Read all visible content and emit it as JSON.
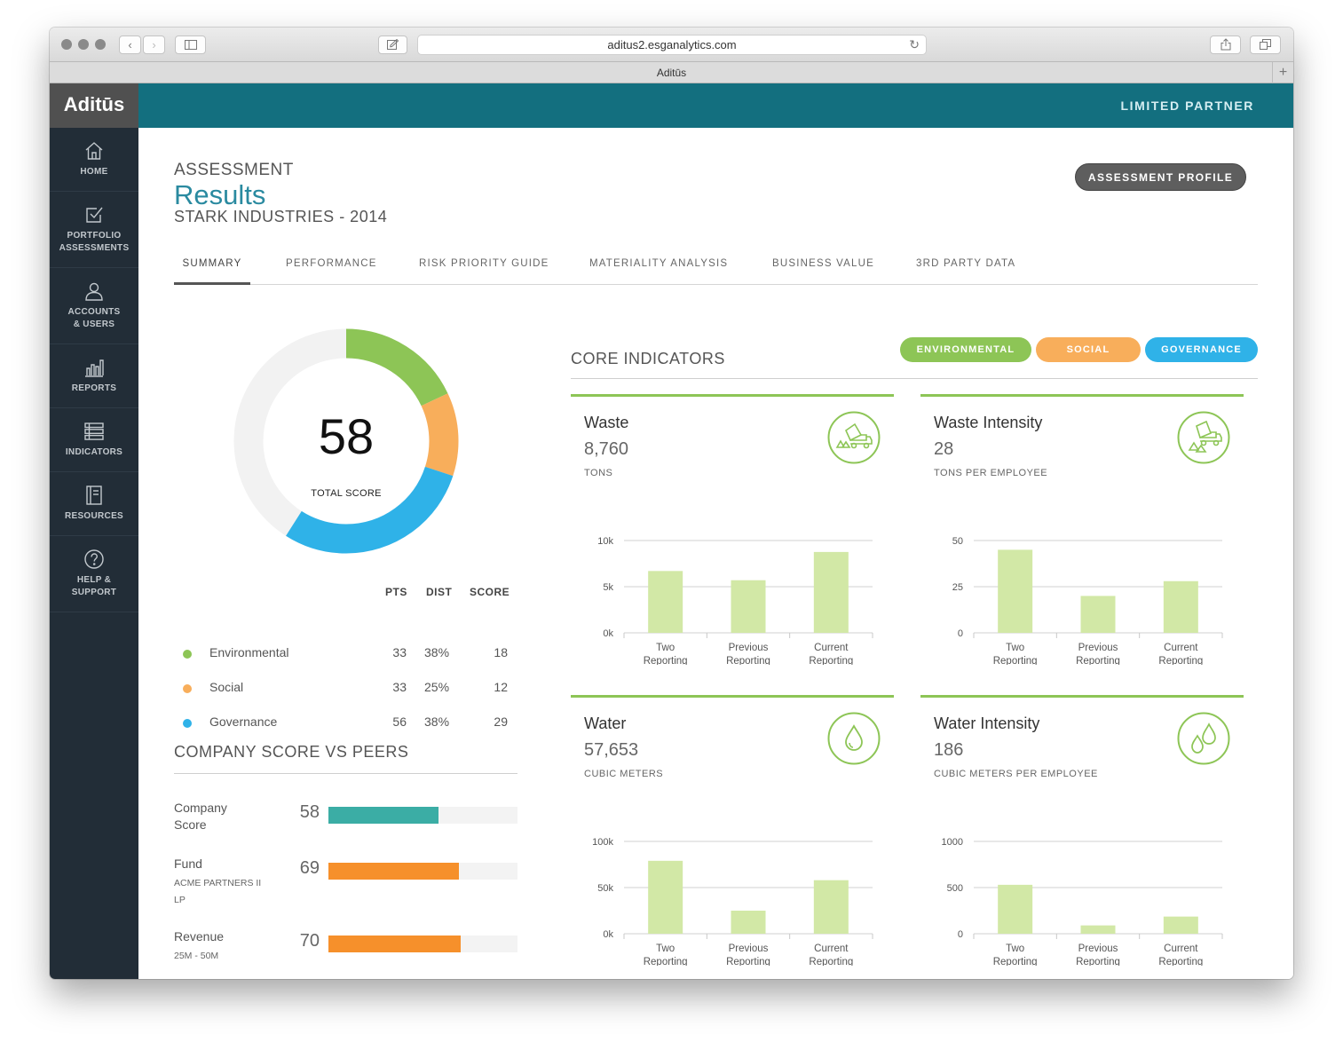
{
  "browser": {
    "url": "aditus2.esganalytics.com",
    "tab_title": "Aditūs"
  },
  "app": {
    "logo": "Aditūs",
    "role": "LIMITED PARTNER"
  },
  "sidebar": {
    "items": [
      {
        "label": "HOME",
        "icon": "home-icon"
      },
      {
        "label": "PORTFOLIO\nASSESSMENTS",
        "icon": "checkbox-icon"
      },
      {
        "label": "ACCOUNTS\n& USERS",
        "icon": "user-icon"
      },
      {
        "label": "REPORTS",
        "icon": "bar-chart-icon"
      },
      {
        "label": "INDICATORS",
        "icon": "list-icon"
      },
      {
        "label": "RESOURCES",
        "icon": "book-icon"
      },
      {
        "label": "HELP &\nSUPPORT",
        "icon": "help-icon"
      }
    ]
  },
  "header": {
    "pretitle": "ASSESSMENT",
    "title": "Results",
    "subtitle": "STARK INDUSTRIES - 2014",
    "profile_button": "ASSESSMENT PROFILE"
  },
  "tabs": [
    {
      "label": "SUMMARY",
      "active": true
    },
    {
      "label": "PERFORMANCE",
      "active": false
    },
    {
      "label": "RISK PRIORITY GUIDE",
      "active": false
    },
    {
      "label": "MATERIALITY ANALYSIS",
      "active": false
    },
    {
      "label": "BUSINESS VALUE",
      "active": false
    },
    {
      "label": "3RD PARTY DATA",
      "active": false
    }
  ],
  "summary": {
    "total_score": "58",
    "total_label": "TOTAL SCORE",
    "columns": {
      "pts": "PTS",
      "dist": "DIST",
      "score": "SCORE"
    },
    "rows": [
      {
        "name": "Environmental",
        "pts": "33",
        "dist": "38%",
        "score": "18",
        "color": "#8dc556"
      },
      {
        "name": "Social",
        "pts": "33",
        "dist": "25%",
        "score": "12",
        "color": "#f8ae5b"
      },
      {
        "name": "Governance",
        "pts": "56",
        "dist": "38%",
        "score": "29",
        "color": "#2fb2e8"
      }
    ],
    "remainder_color": "#f2f2f2"
  },
  "peers": {
    "heading": "COMPANY SCORE VS PEERS",
    "items": [
      {
        "name": "Company\nScore",
        "sub": "",
        "value": "58",
        "fraction": 0.58,
        "color": "#3bada5"
      },
      {
        "name": "Fund",
        "sub": "ACME PARTNERS II\nLP",
        "value": "69",
        "fraction": 0.69,
        "color": "#f6902b"
      },
      {
        "name": "Revenue",
        "sub": "25M - 50M",
        "value": "70",
        "fraction": 0.7,
        "color": "#f6902b"
      }
    ]
  },
  "core": {
    "heading": "CORE INDICATORS",
    "filters": [
      {
        "label": "ENVIRONMENTAL",
        "color": "#8dc556"
      },
      {
        "label": "SOCIAL",
        "color": "#f8ae5b"
      },
      {
        "label": "GOVERNANCE",
        "color": "#2fb2e8"
      }
    ],
    "bar_color": "#d2e8a6",
    "cards": [
      {
        "title": "Waste",
        "value": "8,760",
        "unit": "TONS",
        "icon": "garbage-truck-icon"
      },
      {
        "title": "Waste Intensity",
        "value": "28",
        "unit": "TONS PER EMPLOYEE",
        "icon": "garbage-truck-icon"
      },
      {
        "title": "Water",
        "value": "57,653",
        "unit": "CUBIC METERS",
        "icon": "water-drop-icon"
      },
      {
        "title": "Water Intensity",
        "value": "186",
        "unit": "CUBIC METERS PER EMPLOYEE",
        "icon": "water-drops-icon"
      }
    ]
  },
  "chart_data": [
    {
      "type": "bar",
      "categories": [
        "Two Reporting Periods Ago",
        "Previous Reporting Period",
        "Current Reporting Period"
      ],
      "values": [
        6700,
        5700,
        8760
      ],
      "yticks": [
        "0k",
        "5k",
        "10k"
      ],
      "ylim": [
        0,
        10000
      ]
    },
    {
      "type": "bar",
      "categories": [
        "Two Reporting Periods Ago",
        "Previous Reporting Period",
        "Current Reporting Period"
      ],
      "values": [
        45,
        20,
        28
      ],
      "yticks": [
        "0",
        "25",
        "50"
      ],
      "ylim": [
        0,
        50
      ]
    },
    {
      "type": "bar",
      "categories": [
        "Two Reporting Periods Ago",
        "Previous Reporting Period",
        "Current Reporting Period"
      ],
      "values": [
        79000,
        25000,
        58000
      ],
      "yticks": [
        "0k",
        "50k",
        "100k"
      ],
      "ylim": [
        0,
        100000
      ]
    },
    {
      "type": "bar",
      "categories": [
        "Two Reporting Periods Ago",
        "Previous Reporting Period",
        "Current Reporting Period"
      ],
      "values": [
        530,
        90,
        186
      ],
      "yticks": [
        "0",
        "500",
        "1000"
      ],
      "ylim": [
        0,
        1000
      ]
    }
  ]
}
